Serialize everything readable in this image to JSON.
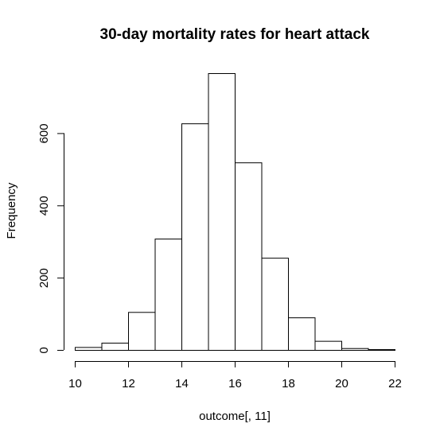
{
  "chart_data": {
    "type": "bar",
    "subtype": "histogram",
    "title": "30-day mortality rates for heart attack",
    "xlabel": "outcome[, 11]",
    "ylabel": "Frequency",
    "bins": [
      {
        "start": 10,
        "end": 11,
        "count": 8
      },
      {
        "start": 11,
        "end": 12,
        "count": 20
      },
      {
        "start": 12,
        "end": 13,
        "count": 105
      },
      {
        "start": 13,
        "end": 14,
        "count": 308
      },
      {
        "start": 14,
        "end": 15,
        "count": 627
      },
      {
        "start": 15,
        "end": 16,
        "count": 766
      },
      {
        "start": 16,
        "end": 17,
        "count": 519
      },
      {
        "start": 17,
        "end": 18,
        "count": 255
      },
      {
        "start": 18,
        "end": 19,
        "count": 90
      },
      {
        "start": 19,
        "end": 20,
        "count": 25
      },
      {
        "start": 20,
        "end": 21,
        "count": 5
      },
      {
        "start": 21,
        "end": 22,
        "count": 2
      }
    ],
    "x_ticks": [
      10,
      12,
      14,
      16,
      18,
      20,
      22
    ],
    "y_ticks": [
      0,
      200,
      400,
      600
    ],
    "x_tick_labels": [
      "10",
      "12",
      "14",
      "16",
      "18",
      "20",
      "22"
    ],
    "y_tick_labels": [
      "0",
      "200",
      "400",
      "600"
    ],
    "xlim": [
      10,
      22
    ],
    "ylim": [
      0,
      766
    ],
    "grid": false,
    "legend": "none",
    "colors": {
      "bar_fill": "#ffffff",
      "bar_stroke": "#000000"
    }
  }
}
